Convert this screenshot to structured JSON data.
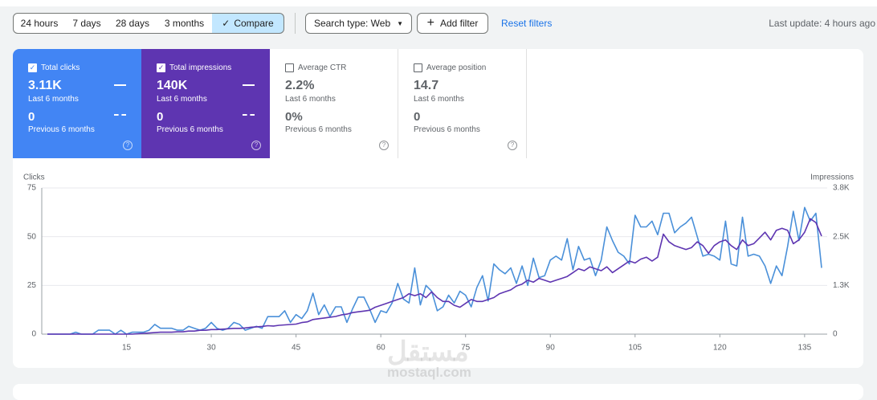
{
  "toolbar": {
    "ranges": [
      "24 hours",
      "7 days",
      "28 days",
      "3 months",
      "Compare"
    ],
    "search_type": "Search type: Web",
    "add_filter": "Add filter",
    "reset": "Reset filters",
    "last_update": "Last update: 4 hours ago"
  },
  "metrics": [
    {
      "label": "Total clicks",
      "value": "3.11K",
      "period": "Last 6 months",
      "prev_value": "0",
      "prev_period": "Previous 6 months"
    },
    {
      "label": "Total impressions",
      "value": "140K",
      "period": "Last 6 months",
      "prev_value": "0",
      "prev_period": "Previous 6 months"
    },
    {
      "label": "Average CTR",
      "value": "2.2%",
      "period": "Last 6 months",
      "prev_value": "0%",
      "prev_period": "Previous 6 months"
    },
    {
      "label": "Average position",
      "value": "14.7",
      "period": "Last 6 months",
      "prev_value": "0",
      "prev_period": "Previous 6 months"
    }
  ],
  "watermark": [
    "مستقل",
    "mostaql.com"
  ],
  "chart_data": {
    "type": "line",
    "y_label": "Clicks",
    "y2_label": "Impressions",
    "x": [
      1,
      2,
      3,
      4,
      5,
      6,
      7,
      8,
      9,
      10,
      11,
      12,
      13,
      14,
      15,
      16,
      17,
      18,
      19,
      20,
      21,
      22,
      23,
      24,
      25,
      26,
      27,
      28,
      29,
      30,
      31,
      32,
      33,
      34,
      35,
      36,
      37,
      38,
      39,
      40,
      41,
      42,
      43,
      44,
      45,
      46,
      47,
      48,
      49,
      50,
      51,
      52,
      53,
      54,
      55,
      56,
      57,
      58,
      59,
      60,
      61,
      62,
      63,
      64,
      65,
      66,
      67,
      68,
      69,
      70,
      71,
      72,
      73,
      74,
      75,
      76,
      77,
      78,
      79,
      80,
      81,
      82,
      83,
      84,
      85,
      86,
      87,
      88,
      89,
      90,
      91,
      92,
      93,
      94,
      95,
      96,
      97,
      98,
      99,
      100,
      101,
      102,
      103,
      104,
      105,
      106,
      107,
      108,
      109,
      110,
      111,
      112,
      113,
      114,
      115,
      116,
      117,
      118,
      119,
      120,
      121,
      122,
      123,
      124,
      125,
      126,
      127,
      128,
      129,
      130,
      131,
      132,
      133,
      134,
      135,
      136,
      137,
      138
    ],
    "xlim": [
      0,
      139
    ],
    "xticks": [
      15,
      30,
      45,
      60,
      75,
      90,
      105,
      120,
      135
    ],
    "ylim": [
      0,
      75
    ],
    "yticks": [
      0,
      25,
      50,
      75
    ],
    "y2lim": [
      0,
      3800
    ],
    "y2ticks": [
      0,
      {
        "value": 1267,
        "label": "1.3K"
      },
      {
        "value": 2533,
        "label": "2.5K"
      },
      {
        "value": 3800,
        "label": "3.8K"
      }
    ],
    "grid": true,
    "series": [
      {
        "name": "Total clicks",
        "color": "#4a90d9",
        "values": [
          0,
          0,
          0,
          0,
          0,
          1,
          0,
          0,
          0,
          2,
          2,
          2,
          0,
          2,
          0,
          1,
          1,
          1,
          2,
          5,
          3,
          3,
          3,
          2,
          2,
          4,
          3,
          2,
          3,
          6,
          3,
          2,
          3,
          6,
          5,
          2,
          3,
          4,
          3,
          9,
          9,
          9,
          12,
          6,
          10,
          8,
          12,
          21,
          10,
          15,
          9,
          14,
          14,
          6,
          13,
          19,
          19,
          13,
          6,
          12,
          11,
          16,
          26,
          18,
          16,
          34,
          15,
          25,
          22,
          12,
          14,
          20,
          16,
          22,
          20,
          14,
          24,
          30,
          17,
          36,
          33,
          31,
          34,
          26,
          35,
          25,
          39,
          29,
          30,
          38,
          40,
          38,
          49,
          33,
          45,
          38,
          39,
          30,
          38,
          55,
          48,
          42,
          40,
          36,
          61,
          55,
          55,
          58,
          51,
          62,
          62,
          52,
          55,
          57,
          60,
          50,
          40,
          41,
          40,
          38,
          58,
          36,
          35,
          60,
          40,
          41,
          40,
          35,
          26,
          35,
          30,
          45,
          63,
          48,
          65,
          58,
          62,
          34
        ]
      },
      {
        "name": "Total impressions",
        "color": "#5e35b1",
        "axis": "y2",
        "values": [
          0,
          0,
          0,
          0,
          0,
          0,
          0,
          0,
          0,
          0,
          0,
          0,
          0,
          0,
          0,
          0,
          10,
          20,
          30,
          40,
          50,
          50,
          50,
          60,
          60,
          80,
          80,
          100,
          100,
          120,
          120,
          130,
          140,
          150,
          150,
          160,
          180,
          190,
          200,
          220,
          210,
          230,
          240,
          250,
          260,
          300,
          320,
          380,
          400,
          420,
          440,
          460,
          500,
          520,
          560,
          580,
          600,
          620,
          700,
          750,
          800,
          850,
          900,
          950,
          1050,
          1000,
          1050,
          950,
          1100,
          950,
          850,
          850,
          750,
          700,
          800,
          900,
          850,
          850,
          900,
          950,
          1050,
          1100,
          1150,
          1250,
          1300,
          1400,
          1350,
          1450,
          1400,
          1350,
          1400,
          1450,
          1500,
          1600,
          1700,
          1650,
          1750,
          1700,
          1650,
          1750,
          1600,
          1700,
          1800,
          1900,
          1850,
          1950,
          2000,
          1900,
          2000,
          2600,
          2400,
          2300,
          2250,
          2200,
          2250,
          2400,
          2300,
          2100,
          2300,
          2400,
          2450,
          2300,
          2200,
          2450,
          2300,
          2350,
          2500,
          2650,
          2450,
          2700,
          2750,
          2700,
          2350,
          2450,
          2650,
          3000,
          2900,
          2550
        ]
      }
    ]
  }
}
